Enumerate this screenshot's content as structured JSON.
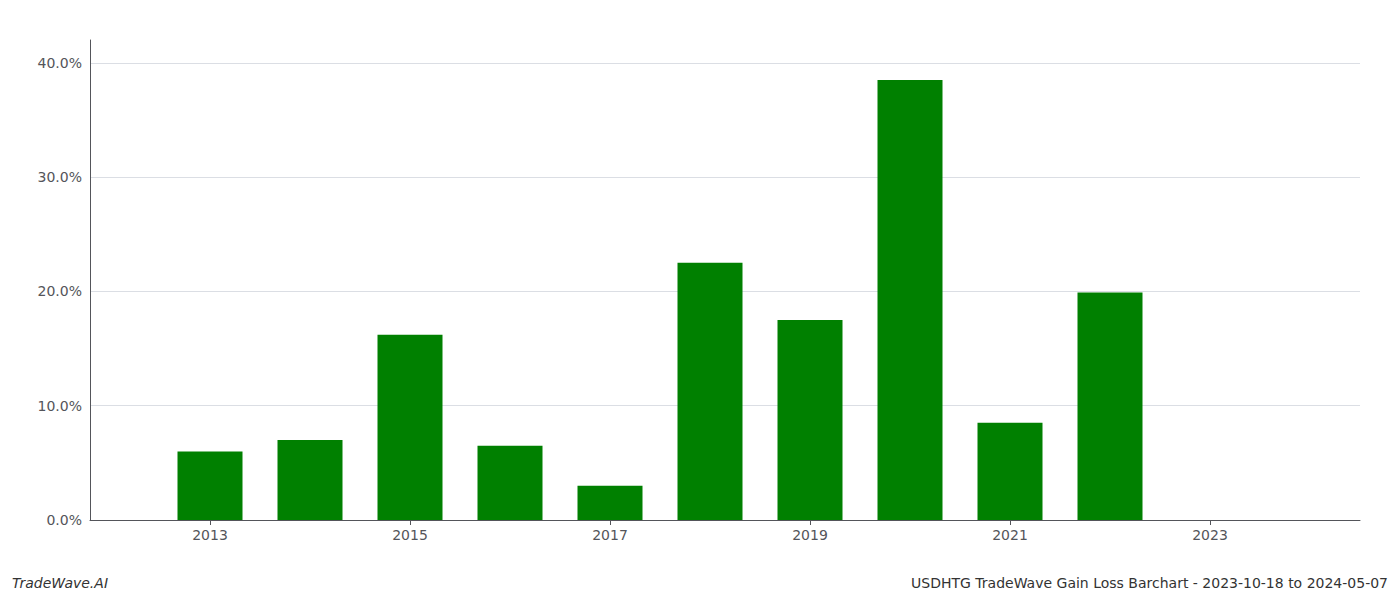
{
  "chart_data": {
    "type": "bar",
    "x": [
      2013,
      2014,
      2015,
      2016,
      2017,
      2018,
      2019,
      2020,
      2021,
      2022,
      2023
    ],
    "values": [
      0.06,
      0.07,
      0.162,
      0.065,
      0.03,
      0.225,
      0.175,
      0.385,
      0.085,
      0.199,
      0.0
    ],
    "color": "#008000",
    "xlim": [
      2011.8,
      2024.5
    ],
    "xticks": [
      2013,
      2015,
      2017,
      2019,
      2021,
      2023
    ],
    "ylim": [
      0,
      0.42
    ],
    "yticks": [
      {
        "value": 0.0,
        "label": "0.0%"
      },
      {
        "value": 0.1,
        "label": "10.0%"
      },
      {
        "value": 0.2,
        "label": "20.0%"
      },
      {
        "value": 0.3,
        "label": "30.0%"
      },
      {
        "value": 0.4,
        "label": "40.0%"
      }
    ],
    "grid": true,
    "annotations": [
      "TradeWave.AI",
      "USDHTG TradeWave Gain Loss Barchart - 2023-10-18 to 2024-05-07"
    ]
  }
}
